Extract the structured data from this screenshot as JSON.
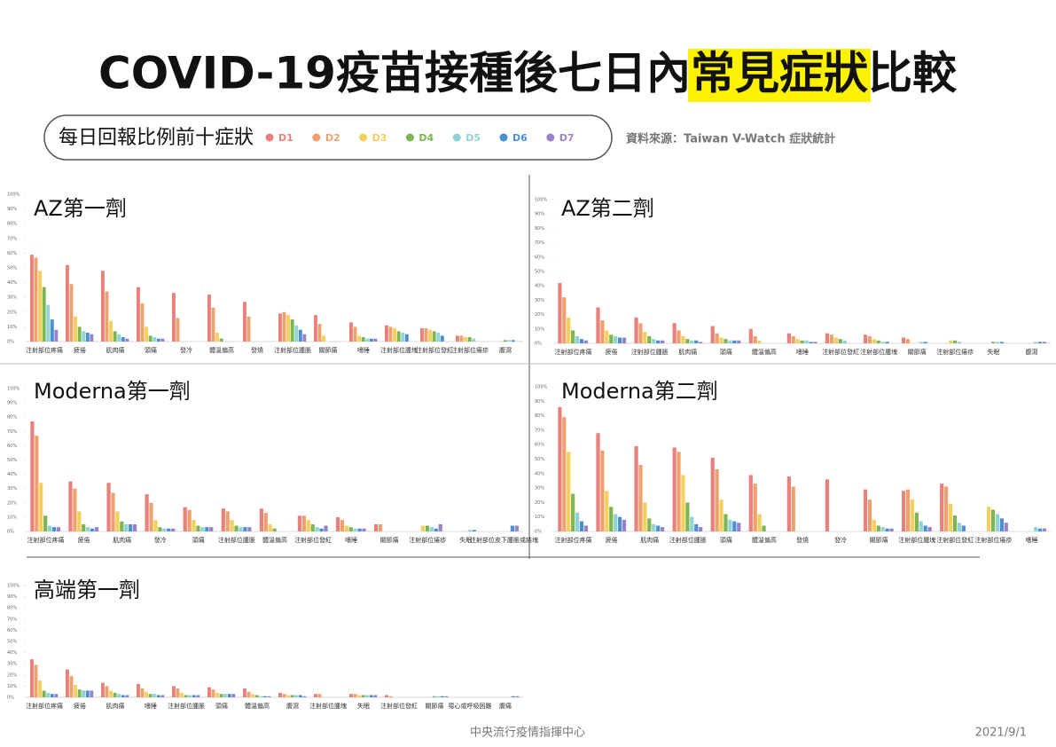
{
  "header": {
    "title_pre": "COVID-19疫苗接種後七日內",
    "title_highlight": "常見症狀",
    "title_post": "比較",
    "source": "資料來源：Taiwan V-Watch 症狀統計"
  },
  "legend": {
    "title": "每日回報比例前十症狀",
    "series": [
      {
        "name": "D1",
        "color": "#e8807c"
      },
      {
        "name": "D2",
        "color": "#f0a06c"
      },
      {
        "name": "D3",
        "color": "#f3cf5c"
      },
      {
        "name": "D4",
        "color": "#7db552"
      },
      {
        "name": "D5",
        "color": "#8fd3d6"
      },
      {
        "name": "D6",
        "color": "#4a8fd6"
      },
      {
        "name": "D7",
        "color": "#9a82c8"
      }
    ]
  },
  "chart_data": [
    {
      "type": "bar",
      "title": "AZ第一劑",
      "categories": [
        "注射部位疼痛",
        "疲倦",
        "肌肉痛",
        "頭痛",
        "發冷",
        "體溫偏高",
        "發燒",
        "注射部位腫脹",
        "關節痛",
        "嗜睡",
        "注射部位腫塊",
        "注射部位發紅",
        "注射部位癢疹",
        "腹瀉"
      ],
      "series": [
        {
          "values": [
            59,
            52,
            48,
            37,
            33,
            32,
            27,
            19,
            18,
            13,
            11,
            9,
            4,
            null
          ]
        },
        {
          "values": [
            57,
            39,
            34,
            26,
            16,
            23,
            17,
            20,
            12,
            10,
            10,
            9,
            4,
            null
          ]
        },
        {
          "values": [
            48,
            17,
            14,
            10,
            null,
            6,
            null,
            18,
            4,
            4,
            9,
            8,
            3,
            null
          ]
        },
        {
          "values": [
            37,
            10,
            7,
            4,
            null,
            2,
            null,
            15,
            null,
            3,
            7,
            7,
            3,
            1
          ]
        },
        {
          "values": [
            25,
            7,
            5,
            3,
            null,
            null,
            null,
            11,
            null,
            2,
            6,
            6,
            2,
            1
          ]
        },
        {
          "values": [
            15,
            6,
            3,
            2,
            null,
            null,
            null,
            8,
            null,
            2,
            5,
            4,
            null,
            1
          ]
        },
        {
          "values": [
            8,
            5,
            2,
            2,
            null,
            null,
            null,
            5,
            null,
            2,
            null,
            null,
            null,
            null
          ]
        }
      ],
      "ylim": [
        0,
        100
      ],
      "yticks": [
        {
          "value": 0,
          "label": "0%"
        },
        {
          "value": 10,
          "label": "10%"
        },
        {
          "value": 20,
          "label": "20%"
        },
        {
          "value": 30,
          "label": "30%"
        },
        {
          "value": 40,
          "label": "40%"
        },
        {
          "value": 50,
          "label": "50%"
        },
        {
          "value": 60,
          "label": "60%"
        },
        {
          "value": 70,
          "label": "70%"
        },
        {
          "value": 80,
          "label": "80%"
        },
        {
          "value": 90,
          "label": "90%"
        },
        {
          "value": 100,
          "label": "100%"
        }
      ]
    },
    {
      "type": "bar",
      "title": "AZ第二劑",
      "categories": [
        "注射部位疼痛",
        "疲倦",
        "注射部位腫脹",
        "肌肉痛",
        "頭痛",
        "體溫偏高",
        "嗜睡",
        "注射部位發紅",
        "注射部位腫塊",
        "關節痛",
        "注射部位癢疹",
        "失眠",
        "腹瀉"
      ],
      "series": [
        {
          "values": [
            42,
            25,
            18,
            14,
            12,
            10,
            7,
            7,
            6,
            4,
            null,
            null,
            null
          ]
        },
        {
          "values": [
            32,
            16,
            14,
            9,
            7,
            5,
            5,
            6,
            5,
            3,
            null,
            null,
            null
          ]
        },
        {
          "values": [
            18,
            9,
            8,
            5,
            4,
            2,
            3,
            4,
            3,
            null,
            2,
            null,
            null
          ]
        },
        {
          "values": [
            9,
            6,
            5,
            3,
            3,
            null,
            2,
            3,
            2,
            null,
            2,
            1,
            null
          ]
        },
        {
          "values": [
            5,
            5,
            3,
            2,
            2,
            null,
            2,
            2,
            1,
            1,
            1,
            1,
            1
          ]
        },
        {
          "values": [
            3,
            4,
            2,
            2,
            2,
            null,
            1,
            null,
            1,
            1,
            null,
            1,
            1
          ]
        },
        {
          "values": [
            2,
            4,
            2,
            1,
            2,
            null,
            1,
            null,
            null,
            null,
            null,
            null,
            1
          ]
        }
      ],
      "ylim": [
        0,
        100
      ],
      "yticks": [
        {
          "value": 0,
          "label": "0%"
        },
        {
          "value": 10,
          "label": "10%"
        },
        {
          "value": 20,
          "label": "20%"
        },
        {
          "value": 30,
          "label": "30%"
        },
        {
          "value": 40,
          "label": "40%"
        },
        {
          "value": 50,
          "label": "50%"
        },
        {
          "value": 60,
          "label": "60%"
        },
        {
          "value": 70,
          "label": "70%"
        },
        {
          "value": 80,
          "label": "80%"
        },
        {
          "value": 90,
          "label": "90%"
        },
        {
          "value": 100,
          "label": "100%"
        }
      ]
    },
    {
      "type": "bar",
      "title": "Moderna第一劑",
      "categories": [
        "注射部位疼痛",
        "疲倦",
        "肌肉痛",
        "發冷",
        "頭痛",
        "注射部位腫脹",
        "體溫偏高",
        "注射部位發紅",
        "嗜睡",
        "關節痛",
        "注射部位癢疹",
        "失眠",
        "注射部位皮下腫脹或結塊"
      ],
      "series": [
        {
          "values": [
            77,
            35,
            34,
            26,
            17,
            16,
            16,
            11,
            10,
            5,
            null,
            null,
            null
          ]
        },
        {
          "values": [
            67,
            30,
            27,
            20,
            15,
            14,
            13,
            11,
            8,
            5,
            null,
            null,
            null
          ]
        },
        {
          "values": [
            34,
            14,
            14,
            8,
            8,
            8,
            5,
            8,
            4,
            null,
            4,
            null,
            null
          ]
        },
        {
          "values": [
            11,
            5,
            7,
            3,
            4,
            4,
            2,
            5,
            3,
            null,
            4,
            null,
            null
          ]
        },
        {
          "values": [
            4,
            3,
            5,
            2,
            3,
            3,
            null,
            3,
            2,
            null,
            3,
            1,
            null
          ]
        },
        {
          "values": [
            3,
            2,
            5,
            2,
            3,
            3,
            null,
            2,
            2,
            null,
            2,
            1,
            4
          ]
        },
        {
          "values": [
            3,
            3,
            5,
            2,
            3,
            3,
            null,
            4,
            2,
            null,
            5,
            null,
            4
          ]
        }
      ],
      "ylim": [
        0,
        100
      ],
      "yticks": [
        {
          "value": 0,
          "label": "0%"
        },
        {
          "value": 10,
          "label": "10%"
        },
        {
          "value": 20,
          "label": "20%"
        },
        {
          "value": 30,
          "label": "30%"
        },
        {
          "value": 40,
          "label": "40%"
        },
        {
          "value": 50,
          "label": "50%"
        },
        {
          "value": 60,
          "label": "60%"
        },
        {
          "value": 70,
          "label": "70%"
        },
        {
          "value": 80,
          "label": "80%"
        },
        {
          "value": 90,
          "label": "90%"
        },
        {
          "value": 100,
          "label": "100%"
        }
      ]
    },
    {
      "type": "bar",
      "title": "Moderna第二劑",
      "categories": [
        "注射部位疼痛",
        "疲倦",
        "肌肉痛",
        "注射部位腫脹",
        "頭痛",
        "體溫偏高",
        "發燒",
        "發冷",
        "關節痛",
        "注射部位腫塊",
        "注射部位發紅",
        "注射部位癢疹",
        "嗜睡"
      ],
      "series": [
        {
          "values": [
            86,
            68,
            59,
            58,
            51,
            39,
            38,
            36,
            29,
            28,
            33,
            null,
            null
          ]
        },
        {
          "values": [
            79,
            56,
            46,
            55,
            43,
            33,
            31,
            null,
            22,
            29,
            31,
            null,
            null
          ]
        },
        {
          "values": [
            55,
            28,
            20,
            39,
            22,
            12,
            null,
            null,
            8,
            22,
            19,
            17,
            null
          ]
        },
        {
          "values": [
            26,
            17,
            9,
            20,
            12,
            4,
            null,
            null,
            4,
            13,
            11,
            15,
            null
          ]
        },
        {
          "values": [
            13,
            12,
            5,
            10,
            8,
            null,
            null,
            null,
            3,
            7,
            6,
            12,
            3
          ]
        },
        {
          "values": [
            7,
            10,
            4,
            5,
            7,
            null,
            null,
            null,
            2,
            4,
            4,
            9,
            2
          ]
        },
        {
          "values": [
            4,
            8,
            3,
            3,
            6,
            null,
            null,
            null,
            2,
            3,
            null,
            6,
            2
          ]
        }
      ],
      "ylim": [
        0,
        100
      ],
      "yticks": [
        {
          "value": 0,
          "label": "0%"
        },
        {
          "value": 10,
          "label": "10%"
        },
        {
          "value": 20,
          "label": "20%"
        },
        {
          "value": 30,
          "label": "30%"
        },
        {
          "value": 40,
          "label": "40%"
        },
        {
          "value": 50,
          "label": "50%"
        },
        {
          "value": 60,
          "label": "60%"
        },
        {
          "value": 70,
          "label": "70%"
        },
        {
          "value": 80,
          "label": "80%"
        },
        {
          "value": 90,
          "label": "90%"
        },
        {
          "value": 100,
          "label": "100%"
        }
      ]
    },
    {
      "type": "bar",
      "title": "高端第一劑",
      "categories": [
        "注射部位疼痛",
        "疲倦",
        "肌肉痛",
        "嗜睡",
        "注射部位腫脹",
        "頭痛",
        "體溫偏高",
        "腹瀉",
        "注射部位腫塊",
        "失眠",
        "注射部位發紅",
        "關節痛",
        "噁心或呼吸困難",
        "腹痛"
      ],
      "series": [
        {
          "values": [
            34,
            25,
            13,
            12,
            10,
            9,
            8,
            4,
            3,
            3,
            2,
            null,
            null,
            null
          ]
        },
        {
          "values": [
            29,
            19,
            10,
            8,
            8,
            7,
            5,
            3,
            3,
            3,
            1,
            null,
            null,
            null
          ]
        },
        {
          "values": [
            15,
            11,
            6,
            5,
            4,
            4,
            3,
            2,
            null,
            2,
            null,
            null,
            null,
            null
          ]
        },
        {
          "values": [
            6,
            7,
            4,
            3,
            2,
            3,
            2,
            2,
            null,
            2,
            null,
            1,
            null,
            null
          ]
        },
        {
          "values": [
            4,
            6,
            3,
            3,
            2,
            3,
            1,
            2,
            null,
            2,
            null,
            1,
            null,
            null
          ]
        },
        {
          "values": [
            3,
            6,
            2,
            2,
            2,
            3,
            1,
            2,
            null,
            2,
            null,
            1,
            null,
            1
          ]
        },
        {
          "values": [
            3,
            6,
            2,
            2,
            2,
            3,
            1,
            1,
            null,
            2,
            null,
            1,
            null,
            1
          ]
        }
      ],
      "ylim": [
        0,
        100
      ],
      "yticks": [
        {
          "value": 0,
          "label": "0%"
        },
        {
          "value": 10,
          "label": "10%"
        },
        {
          "value": 20,
          "label": "20%"
        },
        {
          "value": 30,
          "label": "30%"
        },
        {
          "value": 40,
          "label": "40%"
        },
        {
          "value": 50,
          "label": "50%"
        },
        {
          "value": 60,
          "label": "60%"
        },
        {
          "value": 70,
          "label": "70%"
        },
        {
          "value": 80,
          "label": "80%"
        },
        {
          "value": 90,
          "label": "90%"
        },
        {
          "value": 100,
          "label": "100%"
        }
      ]
    }
  ],
  "footer": {
    "org": "中央流行疫情指揮中心",
    "date": "2021/9/1"
  }
}
